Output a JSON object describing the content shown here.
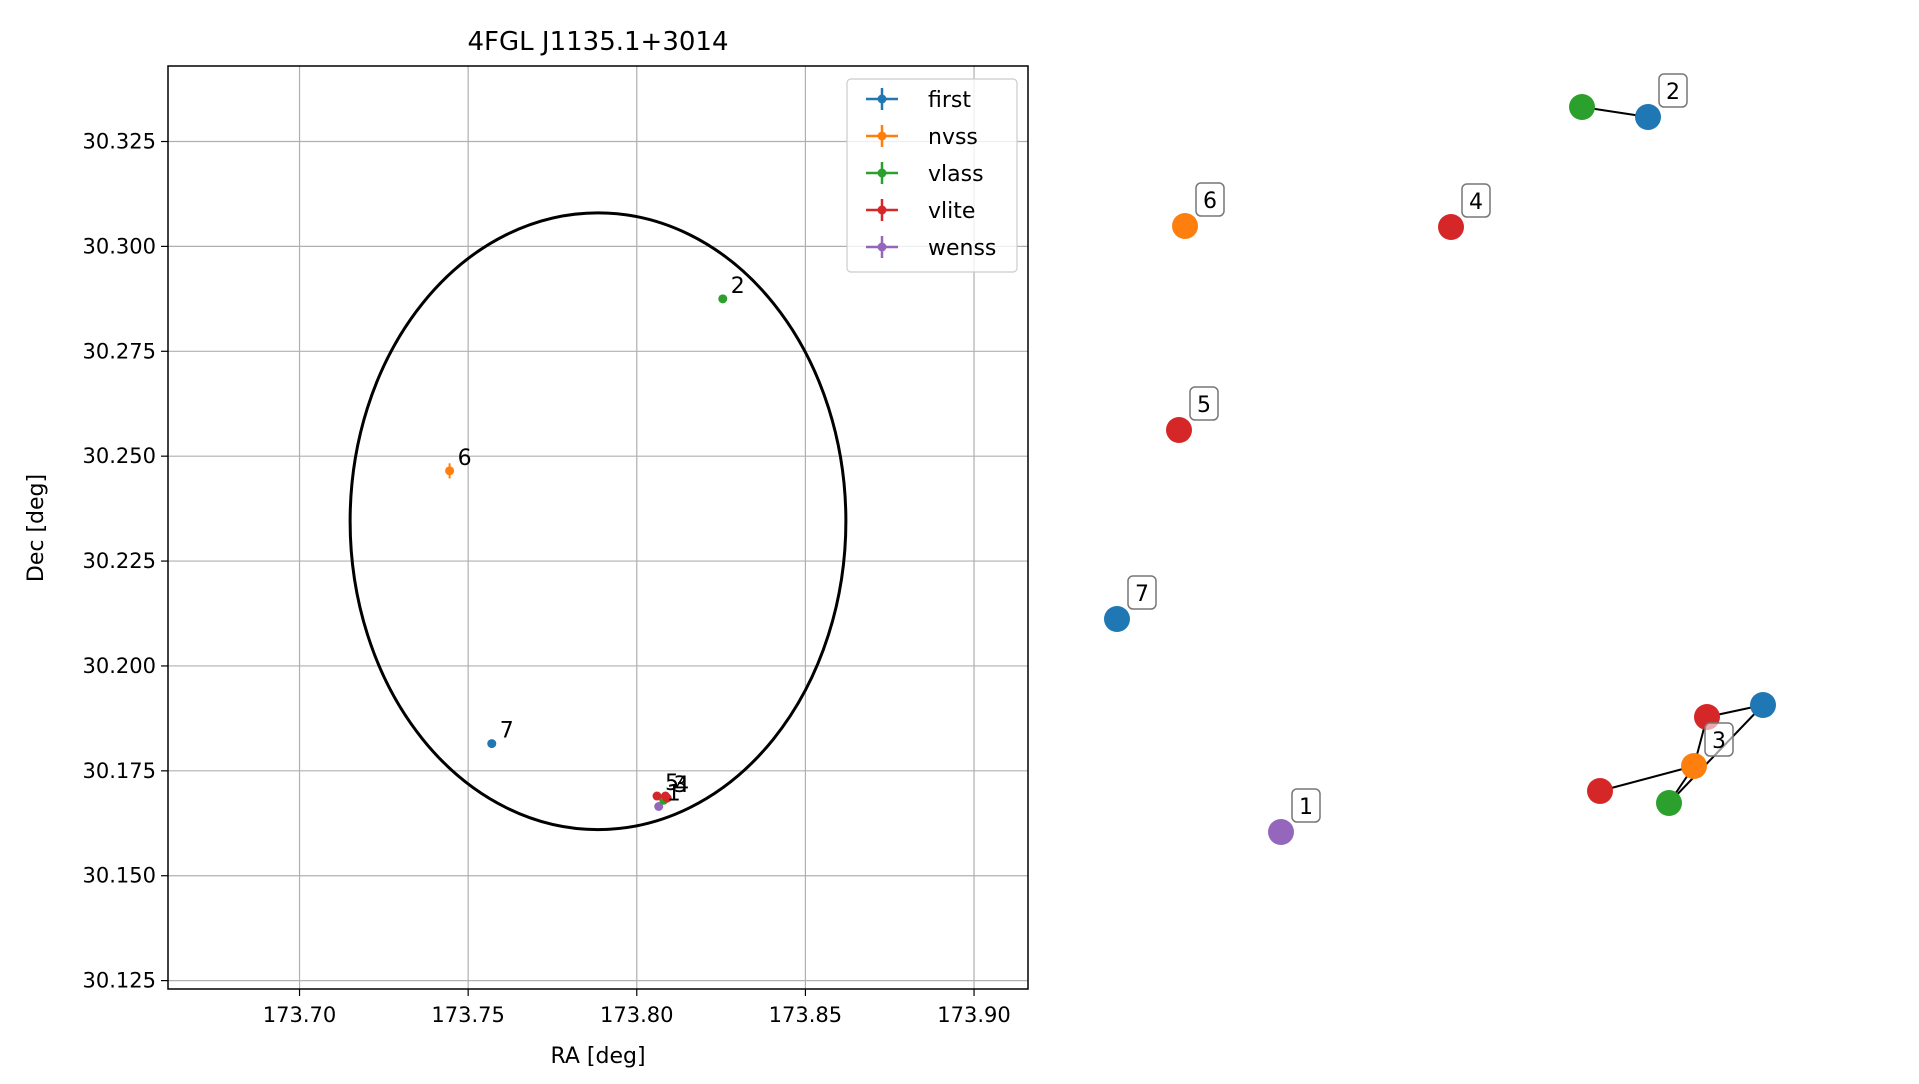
{
  "chart_data": [
    {
      "type": "scatter",
      "title": "4FGL J1135.1+3014",
      "xlabel": "RA [deg]",
      "ylabel": "Dec [deg]",
      "xlim": [
        173.661,
        173.916
      ],
      "ylim": [
        30.123,
        30.343
      ],
      "xticks": [
        173.7,
        173.75,
        173.8,
        173.85,
        173.9
      ],
      "xtick_labels": [
        "173.70",
        "173.75",
        "173.80",
        "173.85",
        "173.90"
      ],
      "yticks": [
        30.125,
        30.15,
        30.175,
        30.2,
        30.225,
        30.25,
        30.275,
        30.3,
        30.325
      ],
      "ytick_labels": [
        "30.125",
        "30.150",
        "30.175",
        "30.200",
        "30.225",
        "30.250",
        "30.275",
        "30.300",
        "30.325"
      ],
      "grid": true,
      "legend_position": "top-right",
      "series": [
        {
          "name": "first",
          "color": "#1f77b4"
        },
        {
          "name": "nvss",
          "color": "#ff7f0e"
        },
        {
          "name": "vlass",
          "color": "#2ca02c"
        },
        {
          "name": "vlite",
          "color": "#d62728"
        },
        {
          "name": "wenss",
          "color": "#9467bd"
        }
      ],
      "points": [
        {
          "label": "1",
          "series": "wenss",
          "ra": 173.8065,
          "dec": 30.1665,
          "err_ra": 0.0005,
          "err_dec": 0.0008
        },
        {
          "label": "2",
          "series": "vlass",
          "ra": 173.8255,
          "dec": 30.2875,
          "err_ra": 0.0003,
          "err_dec": 0.0003
        },
        {
          "label": "3",
          "series": "first",
          "ra": 173.8085,
          "dec": 30.1685,
          "err_ra": 0.0003,
          "err_dec": 0.0003
        },
        {
          "label": "3",
          "series": "nvss",
          "ra": 173.8085,
          "dec": 30.1685,
          "err_ra": 0.0005,
          "err_dec": 0.0008
        },
        {
          "label": "3",
          "series": "vlass",
          "ra": 173.808,
          "dec": 30.168,
          "err_ra": 0.0003,
          "err_dec": 0.0003
        },
        {
          "label": "3",
          "series": "vlite",
          "ra": 173.8085,
          "dec": 30.169,
          "err_ra": 0.0005,
          "err_dec": 0.0005
        },
        {
          "label": "4",
          "series": "vlite",
          "ra": 173.809,
          "dec": 30.1685,
          "err_ra": 0.0005,
          "err_dec": 0.0005
        },
        {
          "label": "5",
          "series": "vlite",
          "ra": 173.806,
          "dec": 30.169,
          "err_ra": 0.0005,
          "err_dec": 0.0005
        },
        {
          "label": "6",
          "series": "nvss",
          "ra": 173.7445,
          "dec": 30.2465,
          "err_ra": 0.0009,
          "err_dec": 0.0018
        },
        {
          "label": "7",
          "series": "first",
          "ra": 173.757,
          "dec": 30.1815,
          "err_ra": 0.0003,
          "err_dec": 0.0003
        }
      ],
      "ellipse": {
        "center_ra": 173.7885,
        "center_dec": 30.2345,
        "semi_ra": 0.0735,
        "semi_dec": 0.0735,
        "color": "#000000"
      }
    },
    {
      "type": "network",
      "nodes": [
        {
          "id": "n1",
          "series": "wenss",
          "color": "#9467bd",
          "label": "1"
        },
        {
          "id": "n2a",
          "series": "vlass",
          "color": "#2ca02c",
          "label": ""
        },
        {
          "id": "n2b",
          "series": "first",
          "color": "#1f77b4",
          "label": "2"
        },
        {
          "id": "n3a",
          "series": "vlite",
          "color": "#d62728",
          "label": ""
        },
        {
          "id": "n3b",
          "series": "first",
          "color": "#1f77b4",
          "label": ""
        },
        {
          "id": "n3c",
          "series": "nvss",
          "color": "#ff7f0e",
          "label": "3"
        },
        {
          "id": "n3d",
          "series": "vlite",
          "color": "#d62728",
          "label": ""
        },
        {
          "id": "n3e",
          "series": "vlass",
          "color": "#2ca02c",
          "label": ""
        },
        {
          "id": "n4",
          "series": "vlite",
          "color": "#d62728",
          "label": "4"
        },
        {
          "id": "n5",
          "series": "vlite",
          "color": "#d62728",
          "label": "5"
        },
        {
          "id": "n6",
          "series": "nvss",
          "color": "#ff7f0e",
          "label": "6"
        },
        {
          "id": "n7",
          "series": "first",
          "color": "#1f77b4",
          "label": "7"
        }
      ],
      "edges": [
        [
          "n2a",
          "n2b"
        ],
        [
          "n3a",
          "n3b"
        ],
        [
          "n3b",
          "n3e"
        ],
        [
          "n3c",
          "n3a"
        ],
        [
          "n3c",
          "n3e"
        ],
        [
          "n3c",
          "n3d"
        ]
      ]
    }
  ]
}
